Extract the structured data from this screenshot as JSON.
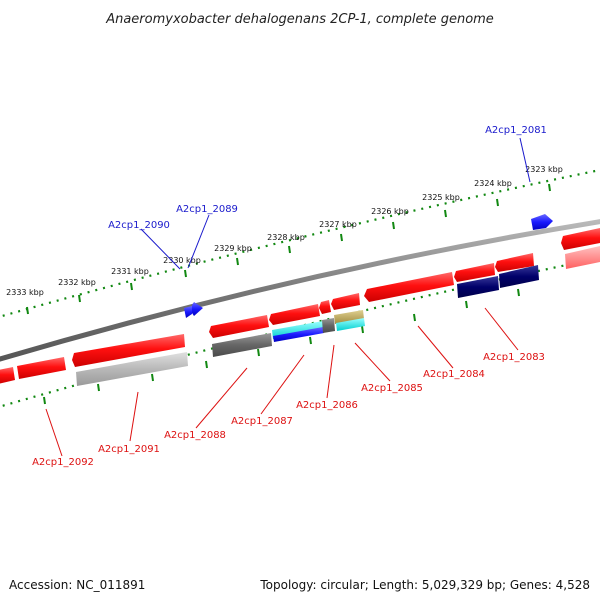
{
  "title": "Anaeromyxobacter dehalogenans 2CP-1, complete genome",
  "footer": {
    "accession": "Accession: NC_011891",
    "summary": "Topology: circular; Length: 5,029,329 bp; Genes: 4,528"
  },
  "colors": {
    "forward_gene": "#ff1010",
    "reverse_gene": "#ff1010",
    "highlight_blue": "#1a1aff",
    "navy": "#00006a",
    "gray_feature": "#666666",
    "light_gray_feature": "#b8b8b8",
    "cyan": "#00dcdc",
    "khaki": "#b9a55a",
    "tick_green": "#118811",
    "label_blue": "#1a1acc",
    "label_red": "#dd1111"
  },
  "tick_labels": [
    "2333 kbp",
    "2332 kbp",
    "2331 kbp",
    "2330 kbp",
    "2329 kbp",
    "2328 kbp",
    "2327 kbp",
    "2326 kbp",
    "2325 kbp",
    "2324 kbp",
    "2323 kbp"
  ],
  "top_labels": [
    "A2cp1_2081",
    "A2cp1_2089",
    "A2cp1_2090"
  ],
  "bottom_labels": [
    "A2cp1_2083",
    "A2cp1_2084",
    "A2cp1_2085",
    "A2cp1_2086",
    "A2cp1_2087",
    "A2cp1_2088",
    "A2cp1_2091",
    "A2cp1_2092"
  ]
}
